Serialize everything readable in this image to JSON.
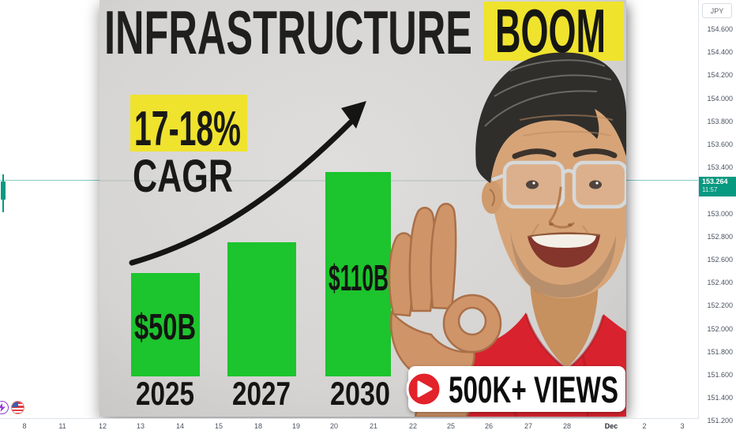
{
  "thumbnail": {
    "title": "INFRASTRUCTURE",
    "title_highlight": "BOOM",
    "growth": {
      "value": "17-18%",
      "label": "CAGR"
    },
    "views_badge": "500K+ VIEWS",
    "colors": {
      "highlight_yellow": "#efe32e",
      "bar_green": "#1cc42d",
      "badge_red": "#e3202c",
      "shirt_red": "#d8232e"
    },
    "chart_data": {
      "type": "bar",
      "title": "INFRASTRUCTURE BOOM",
      "categories": [
        "2025",
        "2027",
        "2030"
      ],
      "values": [
        50,
        75,
        110
      ],
      "value_labels": [
        "$50B",
        "",
        "$110B"
      ],
      "annotations": [
        "17-18% CAGR"
      ],
      "legend": "none",
      "grid": "off"
    }
  },
  "price_scale": {
    "currency": "JPY",
    "ticks": [
      "154.600",
      "154.400",
      "154.200",
      "154.000",
      "153.800",
      "153.600",
      "153.400",
      "153.000",
      "152.800",
      "152.600",
      "152.400",
      "152.200",
      "152.000",
      "151.800",
      "151.600",
      "151.400",
      "151.200"
    ],
    "current": {
      "price": "153.264",
      "time": "11:57"
    },
    "accent_color": "#089981"
  },
  "time_scale": {
    "ticks": [
      "8",
      "11",
      "12",
      "13",
      "14",
      "15",
      "18",
      "19",
      "20",
      "21",
      "22",
      "25",
      "26",
      "27",
      "28",
      "Dec",
      "2",
      "3"
    ]
  }
}
